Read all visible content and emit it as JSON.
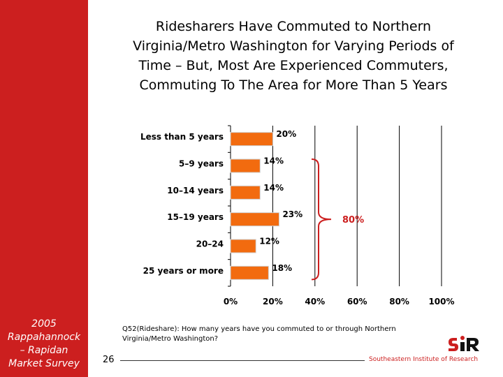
{
  "slide": {
    "title_lines": [
      "Ridesharers Have Commuted to Northern",
      "Virginia/Metro Washington for Varying Periods of",
      "Time – But, Most Are Experienced Commuters,",
      "Commuting To The Area for More Than 5 Years"
    ],
    "sidebar_lines": [
      "2005",
      "Rappahannock",
      "– Rapidan",
      "Market Survey"
    ],
    "question": "Q52(Rideshare): How many years have you commuted to or through Northern Virginia/Metro Washington?",
    "page_number": "26",
    "organization": "Southeastern Institute of Research",
    "logo_icon": "sir-logo-icon"
  },
  "colors": {
    "sidebar": "#cc1f1f",
    "bar": "#f26b0f",
    "bracket": "#cc1f1f",
    "bracket_label": "#cc1f1f"
  },
  "chart_data": {
    "type": "bar",
    "orientation": "horizontal",
    "categories": [
      "Less than 5 years",
      "5–9 years",
      "10–14 years",
      "15–19 years",
      "20–24",
      "25 years or more"
    ],
    "values": [
      20,
      14,
      14,
      23,
      12,
      18
    ],
    "value_labels": [
      "20%",
      "14%",
      "14%",
      "23%",
      "12%",
      "18%"
    ],
    "xlim": [
      0,
      100
    ],
    "xticks": [
      0,
      20,
      40,
      60,
      80,
      100
    ],
    "xtick_labels": [
      "0%",
      "20%",
      "40%",
      "60%",
      "80%",
      "100%"
    ],
    "grid": "vertical",
    "annotation": {
      "label": "80%",
      "spans_categories": [
        "5–9 years",
        "10–14 years",
        "15–19 years",
        "20–24",
        "25 years or more"
      ]
    }
  }
}
